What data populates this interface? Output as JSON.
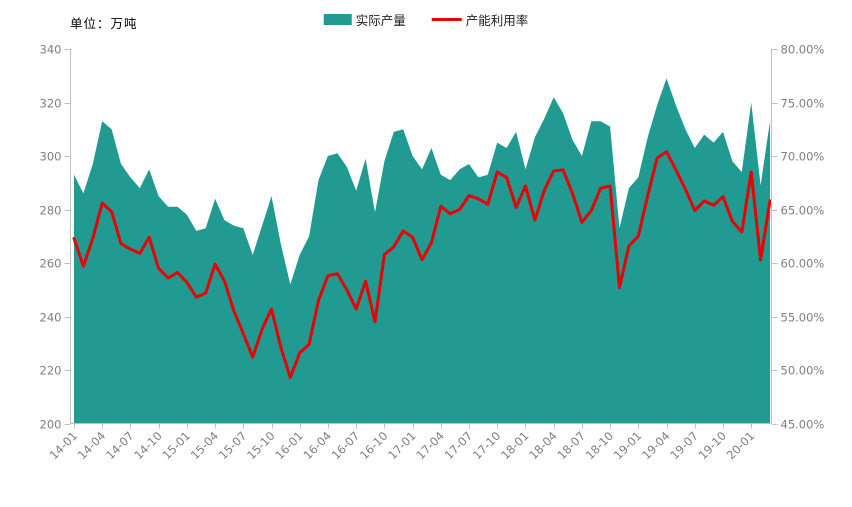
{
  "unit_label": "单位：万吨",
  "legend": {
    "area_label": "实际产量",
    "line_label": "产能利用率"
  },
  "colors": {
    "area_fill": "#219a91",
    "line_stroke": "#e90000",
    "axis_line": "#bfbfbf",
    "tick_label": "#7f7f7f"
  },
  "chart_data": {
    "type": "area",
    "title": "单位：万吨",
    "x": [
      "14-01",
      "14-02",
      "14-03",
      "14-04",
      "14-05",
      "14-06",
      "14-07",
      "14-08",
      "14-09",
      "14-10",
      "14-11",
      "14-12",
      "15-01",
      "15-02",
      "15-03",
      "15-04",
      "15-05",
      "15-06",
      "15-07",
      "15-08",
      "15-09",
      "15-10",
      "15-11",
      "15-12",
      "16-01",
      "16-02",
      "16-03",
      "16-04",
      "16-05",
      "16-06",
      "16-07",
      "16-08",
      "16-09",
      "16-10",
      "16-11",
      "16-12",
      "17-01",
      "17-02",
      "17-03",
      "17-04",
      "17-05",
      "17-06",
      "17-07",
      "17-08",
      "17-09",
      "17-10",
      "17-11",
      "17-12",
      "18-01",
      "18-02",
      "18-03",
      "18-04",
      "18-05",
      "18-06",
      "18-07",
      "18-08",
      "18-09",
      "18-10",
      "18-11",
      "18-12",
      "19-01",
      "19-02",
      "19-03",
      "19-04",
      "19-05",
      "19-06",
      "19-07",
      "19-08",
      "19-09",
      "19-10",
      "19-11",
      "19-12",
      "20-01",
      "20-02",
      "20-03"
    ],
    "x_tick_labels": [
      "14-01",
      "14-04",
      "14-07",
      "14-10",
      "15-01",
      "15-04",
      "15-07",
      "15-10",
      "16-01",
      "16-04",
      "16-07",
      "16-10",
      "17-01",
      "17-04",
      "17-07",
      "17-10",
      "18-01",
      "18-04",
      "18-07",
      "18-10",
      "19-01",
      "19-04",
      "19-07",
      "19-10",
      "20-01"
    ],
    "x_tick_every": 3,
    "series": [
      {
        "name": "实际产量",
        "type": "area",
        "axis": "left",
        "color": "#219a91",
        "values": [
          293,
          286,
          297,
          313,
          310,
          297,
          292,
          288,
          295,
          285,
          281,
          281,
          278,
          272,
          273,
          284,
          276,
          274,
          273,
          263,
          274,
          285,
          267,
          252,
          263,
          270,
          291,
          300,
          301,
          296,
          287,
          299,
          279,
          298,
          309,
          310,
          300,
          295,
          303,
          293,
          291,
          295,
          297,
          292,
          293,
          305,
          303,
          309,
          295,
          307,
          314,
          322,
          316,
          306,
          300,
          313,
          313,
          311,
          273,
          288,
          292,
          307,
          319,
          329,
          319,
          310,
          303,
          308,
          305,
          309,
          298,
          294,
          320,
          289,
          313
        ]
      },
      {
        "name": "产能利用率",
        "type": "line",
        "axis": "right",
        "color": "#e90000",
        "values": [
          62.3,
          59.7,
          62.3,
          65.6,
          64.8,
          61.8,
          61.3,
          60.9,
          62.4,
          59.5,
          58.6,
          59.1,
          58.2,
          56.8,
          57.2,
          59.9,
          58.3,
          55.5,
          53.4,
          51.2,
          53.8,
          55.7,
          52.1,
          49.3,
          51.6,
          52.4,
          56.5,
          58.8,
          59.0,
          57.5,
          55.7,
          58.3,
          54.5,
          60.8,
          61.5,
          63.0,
          62.4,
          60.3,
          61.9,
          65.3,
          64.6,
          65.0,
          66.3,
          66.0,
          65.5,
          68.5,
          68.0,
          65.2,
          67.2,
          64.0,
          66.8,
          68.6,
          68.7,
          66.5,
          63.8,
          64.9,
          67.0,
          67.2,
          57.7,
          61.6,
          62.5,
          66.3,
          69.8,
          70.4,
          68.7,
          66.9,
          64.9,
          65.8,
          65.4,
          66.2,
          63.9,
          62.9,
          68.5,
          60.3,
          65.8
        ]
      }
    ],
    "left_axis": {
      "min": 200,
      "max": 340,
      "step": 20,
      "tick_labels": [
        "200",
        "220",
        "240",
        "260",
        "280",
        "300",
        "320",
        "340"
      ]
    },
    "right_axis": {
      "min": 45,
      "max": 80,
      "step": 5,
      "tick_labels": [
        "45.00%",
        "50.00%",
        "55.00%",
        "60.00%",
        "65.00%",
        "70.00%",
        "75.00%",
        "80.00%"
      ]
    },
    "grid": false,
    "legend_position": "top-center"
  }
}
